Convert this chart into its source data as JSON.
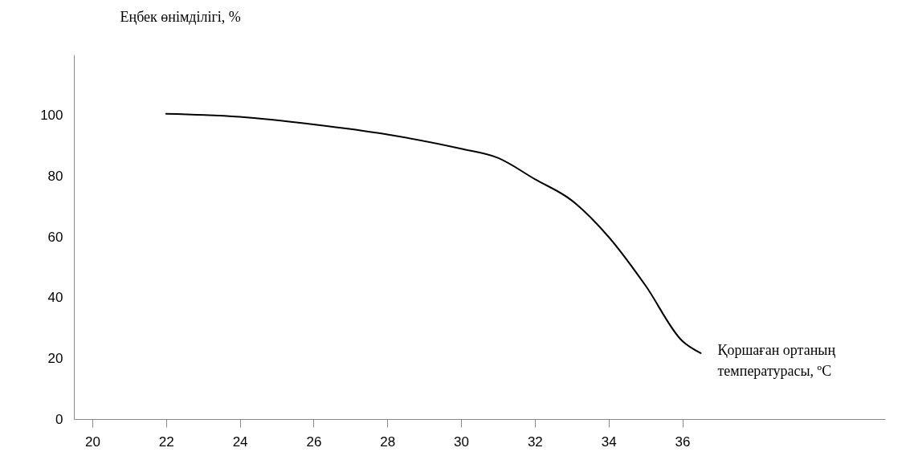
{
  "chart_data": {
    "type": "line",
    "xlabel": "Қоршаған ортаның температурасы, ºC",
    "ylabel": "Еңбек өнімділігі, %",
    "x": [
      22,
      24,
      26,
      28,
      30,
      31,
      32,
      33,
      34,
      35,
      36,
      36.5
    ],
    "series": [
      {
        "color": "#000000",
        "values": [
          100.5,
          99.5,
          97,
          93.7,
          89,
          86,
          79,
          72,
          60,
          44,
          25.7,
          21.7
        ]
      }
    ],
    "xlim": [
      19.5,
      41.5
    ],
    "xticks": [
      20,
      22,
      24,
      26,
      28,
      30,
      32,
      34,
      36
    ],
    "ylim": [
      0,
      120
    ],
    "yticks": [
      0,
      20,
      40,
      60,
      80,
      100
    ],
    "grid": false,
    "marker": "none",
    "line_style": "solid"
  }
}
